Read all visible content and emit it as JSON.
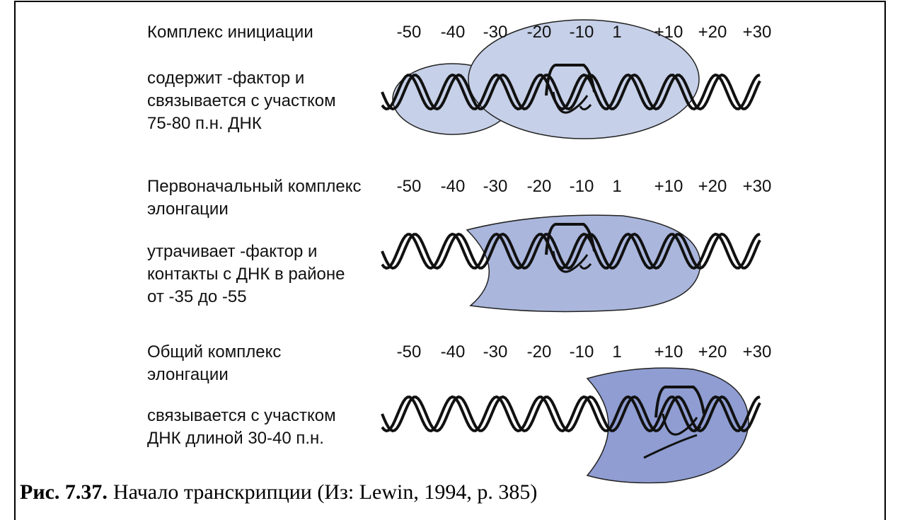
{
  "scale": [
    "-50",
    "-40",
    "-30",
    "-20",
    "-10",
    "1",
    "+10",
    "+20",
    "+30"
  ],
  "panels": [
    {
      "title": [
        "Комплекс инициации"
      ],
      "description": [
        "содержит   -фактор и",
        "связывается с участком",
        "75-80 п.н. ДНК"
      ]
    },
    {
      "title": [
        "Первоначальный комплекс",
        "элонгации"
      ],
      "description": [
        "утрачивает   -фактор и",
        "контакты с ДНК в районе",
        "от -35 до -55"
      ]
    },
    {
      "title": [
        "Общий комплекс",
        "элонгации"
      ],
      "description": [
        "связывается с участком",
        "ДНК длиной 30-40 п.н."
      ]
    }
  ],
  "caption": {
    "label": "Рис. 7.37.",
    "text": "Начало транскрипции (Из: Lewin, 1994, p. 385)"
  }
}
